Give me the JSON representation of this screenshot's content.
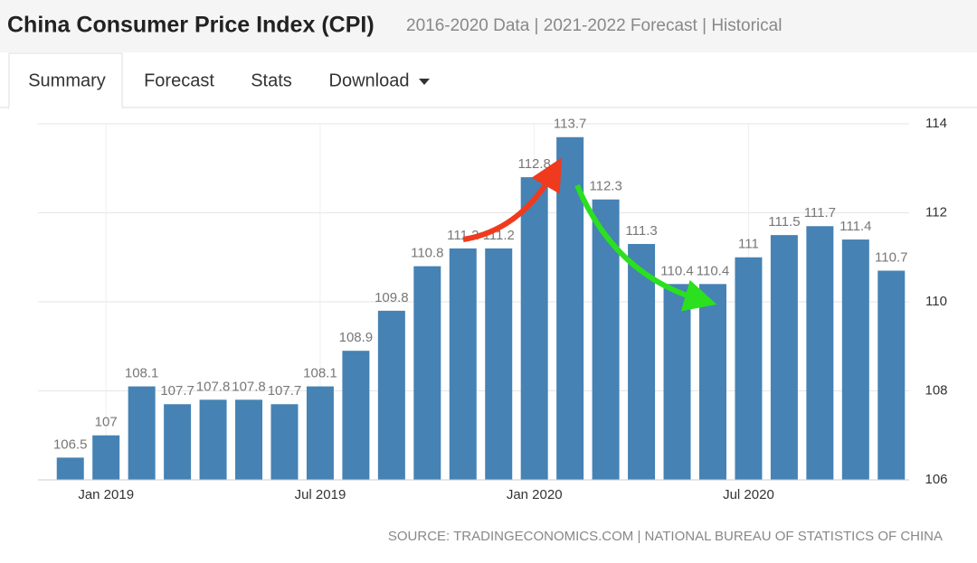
{
  "header": {
    "title": "China Consumer Price Index (CPI)",
    "subtitle": "2016-2020 Data | 2021-2022 Forecast | Historical"
  },
  "tabs": [
    "Summary",
    "Forecast",
    "Stats",
    "Download"
  ],
  "chart_data": {
    "type": "bar",
    "categories": [
      null,
      "Jan 2019",
      null,
      null,
      null,
      null,
      null,
      "Jul 2019",
      null,
      null,
      null,
      null,
      null,
      "Jan 2020",
      null,
      null,
      null,
      null,
      null,
      "Jul 2020",
      null,
      null,
      null,
      null
    ],
    "values": [
      106.5,
      107,
      108.1,
      107.7,
      107.8,
      107.8,
      107.7,
      108.1,
      108.9,
      109.8,
      110.8,
      111.2,
      111.2,
      112.8,
      113.7,
      112.3,
      111.3,
      110.4,
      110.4,
      111,
      111.5,
      111.7,
      111.4,
      110.7
    ],
    "color": "#4682b4",
    "ylim": [
      106,
      114
    ],
    "yticks": [
      106,
      108,
      110,
      112,
      114
    ],
    "grid": true,
    "source": "SOURCE: TRADINGECONOMICS.COM | NATIONAL BUREAU OF STATISTICS OF CHINA"
  }
}
